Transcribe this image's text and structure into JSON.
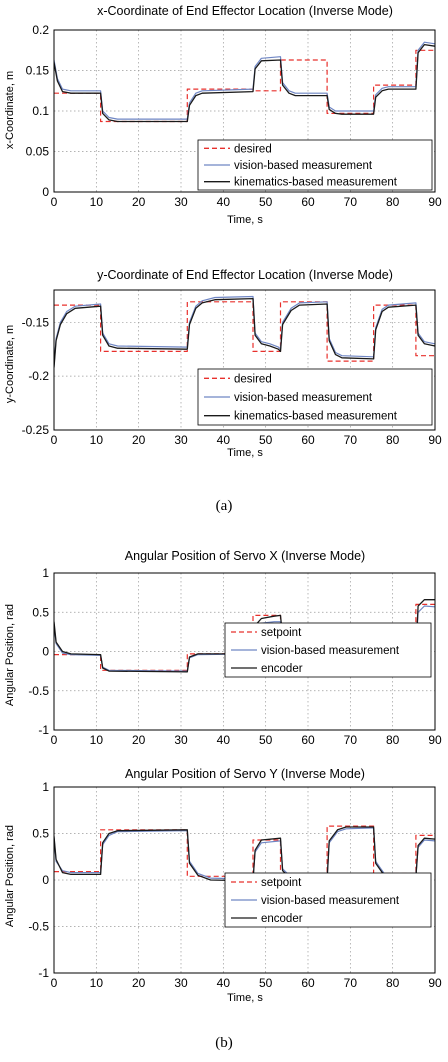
{
  "colors": {
    "desired": "#e8302c",
    "vision": "#6f86c4",
    "kinematics": "#1a1a1a",
    "grid": "#9a9a9a"
  },
  "captions": {
    "a": "(a)",
    "b": "(b)"
  },
  "chart_data": [
    {
      "type": "line",
      "title": "x-Coordinate of End Effector Location (Inverse Mode)",
      "xlabel": "Time, s",
      "ylabel": "x-Coordinate, m",
      "xlim": [
        0,
        90
      ],
      "ylim": [
        0,
        0.2
      ],
      "xticks": [
        "0",
        "10",
        "20",
        "30",
        "40",
        "50",
        "60",
        "70",
        "80",
        "90"
      ],
      "yticks": [
        "0",
        "0.05",
        "0.1",
        "0.15",
        "0.2"
      ],
      "grid": true,
      "legend_position": "bottom-right",
      "legend": [
        "desired",
        "vision-based measurement",
        "kinematics-based measurement"
      ],
      "series": [
        {
          "name": "desired",
          "style": "dashed",
          "color": "#e8302c",
          "x": [
            0,
            11,
            11,
            31.5,
            31.5,
            47,
            47,
            53.5,
            53.5,
            64.5,
            64.5,
            75.5,
            75.5,
            85.5,
            85.5,
            90
          ],
          "y": [
            0.122,
            0.122,
            0.087,
            0.087,
            0.127,
            0.127,
            0.125,
            0.125,
            0.163,
            0.163,
            0.097,
            0.097,
            0.132,
            0.132,
            0.175,
            0.175
          ]
        },
        {
          "name": "vision-based measurement",
          "style": "solid",
          "color": "#6f86c4",
          "x": [
            0,
            0.8,
            2,
            4,
            11,
            11.5,
            13,
            15,
            31.5,
            32,
            33.5,
            35,
            47,
            47.5,
            49,
            53.5,
            54,
            55.5,
            57,
            64.5,
            65,
            66.5,
            68,
            75.5,
            76,
            77.5,
            79,
            85.5,
            86,
            87.5,
            90
          ],
          "y": [
            0.163,
            0.14,
            0.127,
            0.125,
            0.125,
            0.1,
            0.092,
            0.09,
            0.09,
            0.11,
            0.122,
            0.125,
            0.127,
            0.155,
            0.165,
            0.167,
            0.135,
            0.125,
            0.122,
            0.122,
            0.105,
            0.1,
            0.1,
            0.1,
            0.12,
            0.128,
            0.13,
            0.13,
            0.175,
            0.185,
            0.183
          ]
        },
        {
          "name": "kinematics-based measurement",
          "style": "solid",
          "color": "#1a1a1a",
          "x": [
            0,
            0.8,
            2,
            4,
            11,
            11.5,
            13,
            15,
            31.5,
            32,
            33.5,
            35,
            47,
            47.5,
            49,
            53.5,
            54,
            55.5,
            57,
            64.5,
            65,
            66.5,
            68,
            75.5,
            76,
            77.5,
            79,
            85.5,
            86,
            87.5,
            90
          ],
          "y": [
            0.16,
            0.137,
            0.124,
            0.122,
            0.122,
            0.097,
            0.089,
            0.087,
            0.087,
            0.107,
            0.119,
            0.122,
            0.124,
            0.152,
            0.162,
            0.163,
            0.132,
            0.122,
            0.119,
            0.119,
            0.102,
            0.097,
            0.096,
            0.096,
            0.117,
            0.125,
            0.127,
            0.127,
            0.172,
            0.182,
            0.18
          ]
        }
      ]
    },
    {
      "type": "line",
      "title": "y-Coordinate of End Effector Location (Inverse Mode)",
      "xlabel": "Time, s",
      "ylabel": "y-Coordinate, m",
      "xlim": [
        0,
        90
      ],
      "ylim": [
        -0.25,
        -0.12
      ],
      "xticks": [
        "0",
        "10",
        "20",
        "30",
        "40",
        "50",
        "60",
        "70",
        "80",
        "90"
      ],
      "yticks": [
        "-0.15",
        "-0.2",
        "-0.25"
      ],
      "ytick_values": [
        -0.15,
        -0.2,
        -0.25
      ],
      "grid": true,
      "legend_position": "bottom-right",
      "legend": [
        "desired",
        "vision-based measurement",
        "kinematics-based measurement"
      ],
      "series": [
        {
          "name": "desired",
          "style": "dashed",
          "color": "#e8302c",
          "x": [
            0,
            11,
            11,
            31.5,
            31.5,
            47,
            47,
            53.5,
            53.5,
            64.5,
            64.5,
            75.5,
            75.5,
            85.5,
            85.5,
            90
          ],
          "y": [
            -0.134,
            -0.134,
            -0.177,
            -0.177,
            -0.131,
            -0.131,
            -0.177,
            -0.177,
            -0.131,
            -0.131,
            -0.186,
            -0.186,
            -0.134,
            -0.134,
            -0.181,
            -0.181
          ]
        },
        {
          "name": "vision-based measurement",
          "style": "solid",
          "color": "#6f86c4",
          "x": [
            0,
            0.5,
            1.5,
            3,
            5,
            11,
            11.5,
            13,
            15,
            31.5,
            32,
            33.5,
            35,
            38,
            47,
            47.5,
            49,
            51,
            53,
            53.5,
            54,
            56,
            58,
            64.5,
            65,
            66.5,
            68,
            75.5,
            76,
            77.5,
            79,
            85.5,
            86,
            87.5,
            90
          ],
          "y": [
            -0.19,
            -0.165,
            -0.15,
            -0.14,
            -0.135,
            -0.133,
            -0.16,
            -0.17,
            -0.172,
            -0.173,
            -0.15,
            -0.135,
            -0.13,
            -0.127,
            -0.126,
            -0.16,
            -0.168,
            -0.17,
            -0.173,
            -0.175,
            -0.15,
            -0.137,
            -0.132,
            -0.131,
            -0.165,
            -0.178,
            -0.181,
            -0.182,
            -0.155,
            -0.138,
            -0.134,
            -0.132,
            -0.16,
            -0.168,
            -0.17
          ]
        },
        {
          "name": "kinematics-based measurement",
          "style": "solid",
          "color": "#1a1a1a",
          "x": [
            0,
            0.5,
            1.5,
            3,
            5,
            11,
            11.5,
            13,
            15,
            31.5,
            32,
            33.5,
            35,
            38,
            47,
            47.5,
            49,
            51,
            53,
            53.5,
            54,
            56,
            58,
            64.5,
            65,
            66.5,
            68,
            75.5,
            76,
            77.5,
            79,
            85.5,
            86,
            87.5,
            90
          ],
          "y": [
            -0.192,
            -0.167,
            -0.152,
            -0.142,
            -0.137,
            -0.135,
            -0.162,
            -0.172,
            -0.174,
            -0.175,
            -0.152,
            -0.137,
            -0.132,
            -0.129,
            -0.128,
            -0.162,
            -0.17,
            -0.172,
            -0.175,
            -0.177,
            -0.152,
            -0.139,
            -0.134,
            -0.133,
            -0.167,
            -0.18,
            -0.183,
            -0.184,
            -0.157,
            -0.14,
            -0.136,
            -0.134,
            -0.162,
            -0.17,
            -0.172
          ]
        }
      ]
    },
    {
      "type": "line",
      "title": "Angular Position of Servo X (Inverse Mode)",
      "xlabel": "Time, s",
      "ylabel": "Angular Position, rad",
      "xlim": [
        0,
        90
      ],
      "ylim": [
        -1,
        1
      ],
      "xticks": [
        "0",
        "10",
        "20",
        "30",
        "40",
        "50",
        "60",
        "70",
        "80",
        "90"
      ],
      "yticks": [
        "1",
        "0.5",
        "0",
        "-0.5",
        "-1"
      ],
      "ytick_values": [
        1,
        0.5,
        0,
        -0.5,
        -1
      ],
      "grid": true,
      "legend_position": "bottom-right",
      "legend": [
        "setpoint",
        "vision-based measurement",
        "encoder"
      ],
      "series": [
        {
          "name": "setpoint",
          "style": "dashed",
          "color": "#e8302c",
          "x": [
            0,
            11,
            11,
            31.5,
            31.5,
            47,
            47,
            53.5,
            53.5,
            64.5,
            64.5,
            75.5,
            75.5,
            85.5,
            85.5,
            90
          ],
          "y": [
            -0.04,
            -0.04,
            -0.24,
            -0.24,
            -0.03,
            -0.03,
            0.46,
            0.46,
            -0.03,
            -0.03,
            -0.14,
            -0.14,
            0.01,
            0.01,
            0.6,
            0.6
          ]
        },
        {
          "name": "vision-based measurement",
          "style": "solid",
          "color": "#6f86c4",
          "x": [
            0,
            0.5,
            2,
            4,
            11,
            11.5,
            13,
            31.5,
            32,
            34,
            47,
            47.5,
            49,
            52,
            53.5,
            54,
            56,
            58,
            64.5,
            65,
            67,
            75.5,
            76,
            78,
            85.5,
            86,
            87.5,
            90
          ],
          "y": [
            0.35,
            0.1,
            -0.02,
            -0.04,
            -0.05,
            -0.2,
            -0.24,
            -0.25,
            -0.08,
            -0.04,
            -0.03,
            0.28,
            0.36,
            0.38,
            0.38,
            0.15,
            0.0,
            -0.03,
            -0.04,
            -0.12,
            -0.14,
            -0.14,
            -0.02,
            0.0,
            0.0,
            0.5,
            0.58,
            0.57
          ]
        },
        {
          "name": "encoder",
          "style": "solid",
          "color": "#1a1a1a",
          "x": [
            0,
            0.5,
            2,
            4,
            11,
            11.5,
            13,
            31.5,
            32,
            34,
            47,
            47.5,
            49,
            52,
            53.5,
            54,
            56,
            58,
            64.5,
            65,
            67,
            75.5,
            76,
            78,
            85.5,
            86,
            87.5,
            90
          ],
          "y": [
            0.38,
            0.12,
            0.0,
            -0.03,
            -0.04,
            -0.21,
            -0.25,
            -0.26,
            -0.07,
            -0.03,
            -0.03,
            0.33,
            0.42,
            0.45,
            0.46,
            0.18,
            0.02,
            -0.02,
            -0.04,
            -0.13,
            -0.15,
            -0.15,
            -0.03,
            0.0,
            0.0,
            0.58,
            0.66,
            0.66
          ]
        }
      ]
    },
    {
      "type": "line",
      "title": "Angular Position of Servo Y (Inverse Mode)",
      "xlabel": "Time, s",
      "ylabel": "Angular Position, rad",
      "xlim": [
        0,
        90
      ],
      "ylim": [
        -1,
        1
      ],
      "xticks": [
        "0",
        "10",
        "20",
        "30",
        "40",
        "50",
        "60",
        "70",
        "80",
        "90"
      ],
      "yticks": [
        "1",
        "0.5",
        "0",
        "-0.5",
        "-1"
      ],
      "ytick_values": [
        1,
        0.5,
        0,
        -0.5,
        -1
      ],
      "grid": true,
      "legend_position": "bottom-right",
      "legend": [
        "setpoint",
        "vision-based measurement",
        "encoder"
      ],
      "series": [
        {
          "name": "setpoint",
          "style": "dashed",
          "color": "#e8302c",
          "x": [
            0,
            11,
            11,
            31.5,
            31.5,
            47,
            47,
            53.5,
            53.5,
            64.5,
            64.5,
            75.5,
            75.5,
            85.5,
            85.5,
            90
          ],
          "y": [
            0.09,
            0.09,
            0.54,
            0.54,
            0.04,
            0.04,
            0.43,
            0.43,
            0.03,
            0.03,
            0.58,
            0.58,
            0.07,
            0.07,
            0.48,
            0.48
          ]
        },
        {
          "name": "vision-based measurement",
          "style": "solid",
          "color": "#6f86c4",
          "x": [
            0,
            0.5,
            2,
            4,
            11,
            11.5,
            13,
            15,
            31.5,
            32,
            34,
            37,
            47,
            47.5,
            49,
            53.5,
            54,
            56,
            58,
            64.5,
            65,
            67,
            69,
            75.5,
            76,
            78,
            80,
            85.5,
            86,
            87.5,
            90
          ],
          "y": [
            0.45,
            0.2,
            0.1,
            0.08,
            0.08,
            0.38,
            0.48,
            0.52,
            0.53,
            0.2,
            0.07,
            0.02,
            0.01,
            0.3,
            0.4,
            0.42,
            0.12,
            0.03,
            0.02,
            0.02,
            0.4,
            0.52,
            0.55,
            0.56,
            0.2,
            0.07,
            0.05,
            0.05,
            0.35,
            0.43,
            0.42
          ]
        },
        {
          "name": "encoder",
          "style": "solid",
          "color": "#1a1a1a",
          "x": [
            0,
            0.5,
            2,
            4,
            11,
            11.5,
            13,
            15,
            31.5,
            32,
            34,
            37,
            47,
            47.5,
            49,
            53.5,
            54,
            56,
            58,
            64.5,
            65,
            67,
            69,
            75.5,
            76,
            78,
            80,
            85.5,
            86,
            87.5,
            90
          ],
          "y": [
            0.47,
            0.22,
            0.08,
            0.06,
            0.06,
            0.4,
            0.5,
            0.53,
            0.54,
            0.18,
            0.05,
            0.0,
            -0.01,
            0.32,
            0.43,
            0.45,
            0.1,
            0.01,
            0.0,
            0.0,
            0.42,
            0.54,
            0.57,
            0.57,
            0.18,
            0.05,
            0.03,
            0.03,
            0.37,
            0.45,
            0.44
          ]
        }
      ]
    }
  ]
}
